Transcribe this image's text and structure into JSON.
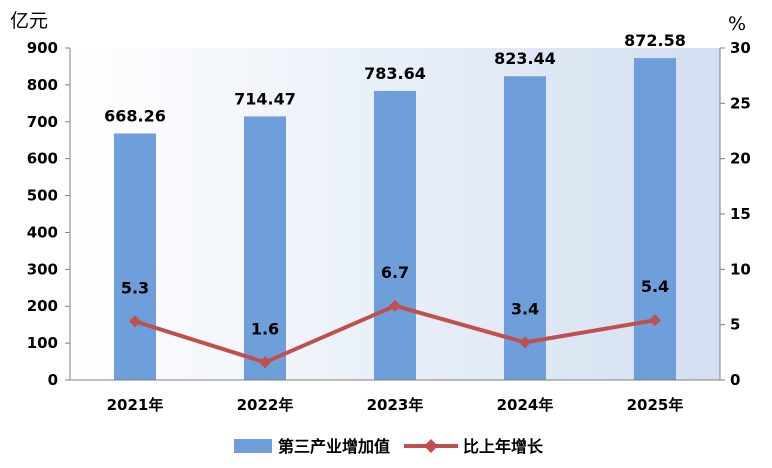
{
  "chart_data": {
    "type": "bar",
    "categories": [
      "2021年",
      "2022年",
      "2023年",
      "2024年",
      "2025年"
    ],
    "series": [
      {
        "name": "第三产业增加值",
        "type": "bar",
        "axis": "left",
        "values": [
          668.26,
          714.47,
          783.64,
          823.44,
          872.58
        ],
        "labels": [
          "668.26",
          "714.47",
          "783.64",
          "823.44",
          "872.58"
        ],
        "color": "#6f9fda"
      },
      {
        "name": "比上年增长",
        "type": "line",
        "axis": "right",
        "values": [
          5.3,
          1.6,
          6.7,
          3.4,
          5.4
        ],
        "labels": [
          "5.3",
          "1.6",
          "6.7",
          "3.4",
          "5.4"
        ],
        "color": "#c0504d"
      }
    ],
    "y_left": {
      "unit": "亿元",
      "ylim": [
        0,
        900
      ],
      "ticks": [
        "0",
        "100",
        "200",
        "300",
        "400",
        "500",
        "600",
        "700",
        "800",
        "900"
      ]
    },
    "y_right": {
      "unit": "%",
      "ylim": [
        0,
        30
      ],
      "ticks": [
        "0",
        "5",
        "10",
        "15",
        "20",
        "25",
        "30"
      ]
    },
    "legend": "bottom",
    "plot_background": "#dce6f2"
  }
}
